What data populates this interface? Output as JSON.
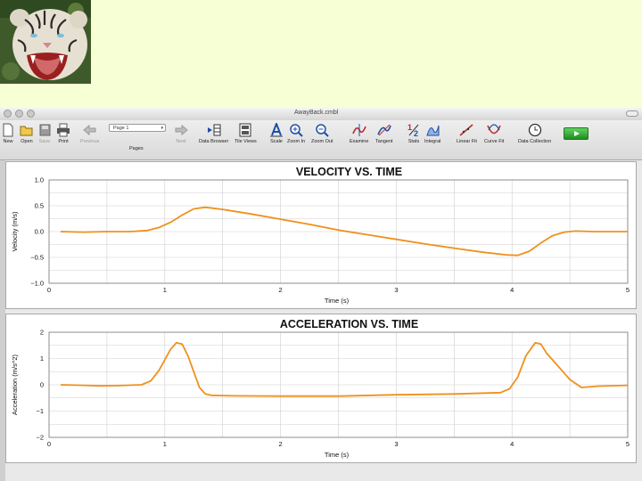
{
  "photo": {
    "subject": "white tiger"
  },
  "window": {
    "title": "AwayBack.cmbl",
    "toolbar": {
      "new": "New",
      "open": "Open",
      "save": "Save",
      "print": "Print",
      "previous": "Previous",
      "page_value": "Page 1",
      "pages": "Pages",
      "next": "Next",
      "data_browser": "Data Browser",
      "tileviews": "Tile Views",
      "scale": "Scale",
      "zoom_in": "Zoom In",
      "zoom_out": "Zoom Out",
      "examine": "Examine",
      "tangent": "Tangent",
      "stats": "Stats",
      "integral": "Integral",
      "linear_fit": "Linear Fit",
      "curve_fit": "Curve Fit",
      "data_collection": "Data Collection"
    }
  },
  "colors": {
    "background": "#f7ffd5",
    "trace": "#f0901c",
    "grid": "#cfcfcf",
    "collect": "#2aa52a"
  },
  "chart_data": [
    {
      "type": "line",
      "title": "VELOCITY VS. TIME",
      "xlabel": "Time (s)",
      "ylabel": "Velocity (m/s)",
      "xlim": [
        0,
        5
      ],
      "ylim": [
        -1.0,
        1.0
      ],
      "xticks": [
        "0",
        "1",
        "2",
        "3",
        "4",
        "5"
      ],
      "yticks": [
        "1.0",
        "0.5",
        "0.0",
        "−0.5",
        "−1.0"
      ],
      "grid": true,
      "series": [
        {
          "x": [
            0.1,
            0.3,
            0.5,
            0.7,
            0.85,
            0.95,
            1.05,
            1.15,
            1.25,
            1.35,
            1.5,
            1.75,
            2.0,
            2.25,
            2.5,
            2.75,
            3.0,
            3.25,
            3.5,
            3.75,
            3.95,
            4.05,
            4.15,
            4.25,
            4.35,
            4.45,
            4.55,
            4.7,
            4.85,
            5.0
          ],
          "y": [
            0.0,
            -0.01,
            0.0,
            0.0,
            0.02,
            0.08,
            0.18,
            0.32,
            0.44,
            0.47,
            0.43,
            0.34,
            0.24,
            0.14,
            0.03,
            -0.06,
            -0.15,
            -0.24,
            -0.32,
            -0.4,
            -0.45,
            -0.46,
            -0.38,
            -0.22,
            -0.08,
            -0.01,
            0.01,
            0.0,
            0.0,
            0.0
          ]
        }
      ]
    },
    {
      "type": "line",
      "title": "ACCELERATION VS. TIME",
      "xlabel": "Time (s)",
      "ylabel": "Acceleration (m/s^2)",
      "xlim": [
        0,
        5
      ],
      "ylim": [
        -2,
        2
      ],
      "xticks": [
        "0",
        "1",
        "2",
        "3",
        "4",
        "5"
      ],
      "yticks": [
        "2",
        "1",
        "0",
        "−1",
        "−2"
      ],
      "grid": true,
      "series": [
        {
          "x": [
            0.1,
            0.3,
            0.45,
            0.6,
            0.8,
            0.88,
            0.95,
            1.0,
            1.05,
            1.1,
            1.15,
            1.2,
            1.25,
            1.3,
            1.35,
            1.4,
            1.6,
            2.0,
            2.5,
            3.0,
            3.5,
            3.9,
            3.98,
            4.05,
            4.12,
            4.2,
            4.25,
            4.3,
            4.38,
            4.45,
            4.5,
            4.6,
            4.75,
            5.0
          ],
          "y": [
            0.0,
            -0.02,
            -0.04,
            -0.03,
            0.0,
            0.15,
            0.55,
            0.95,
            1.35,
            1.6,
            1.55,
            1.1,
            0.5,
            -0.1,
            -0.35,
            -0.4,
            -0.42,
            -0.43,
            -0.43,
            -0.38,
            -0.35,
            -0.3,
            -0.15,
            0.3,
            1.1,
            1.6,
            1.55,
            1.2,
            0.8,
            0.45,
            0.2,
            -0.1,
            -0.05,
            -0.02
          ]
        }
      ]
    }
  ]
}
